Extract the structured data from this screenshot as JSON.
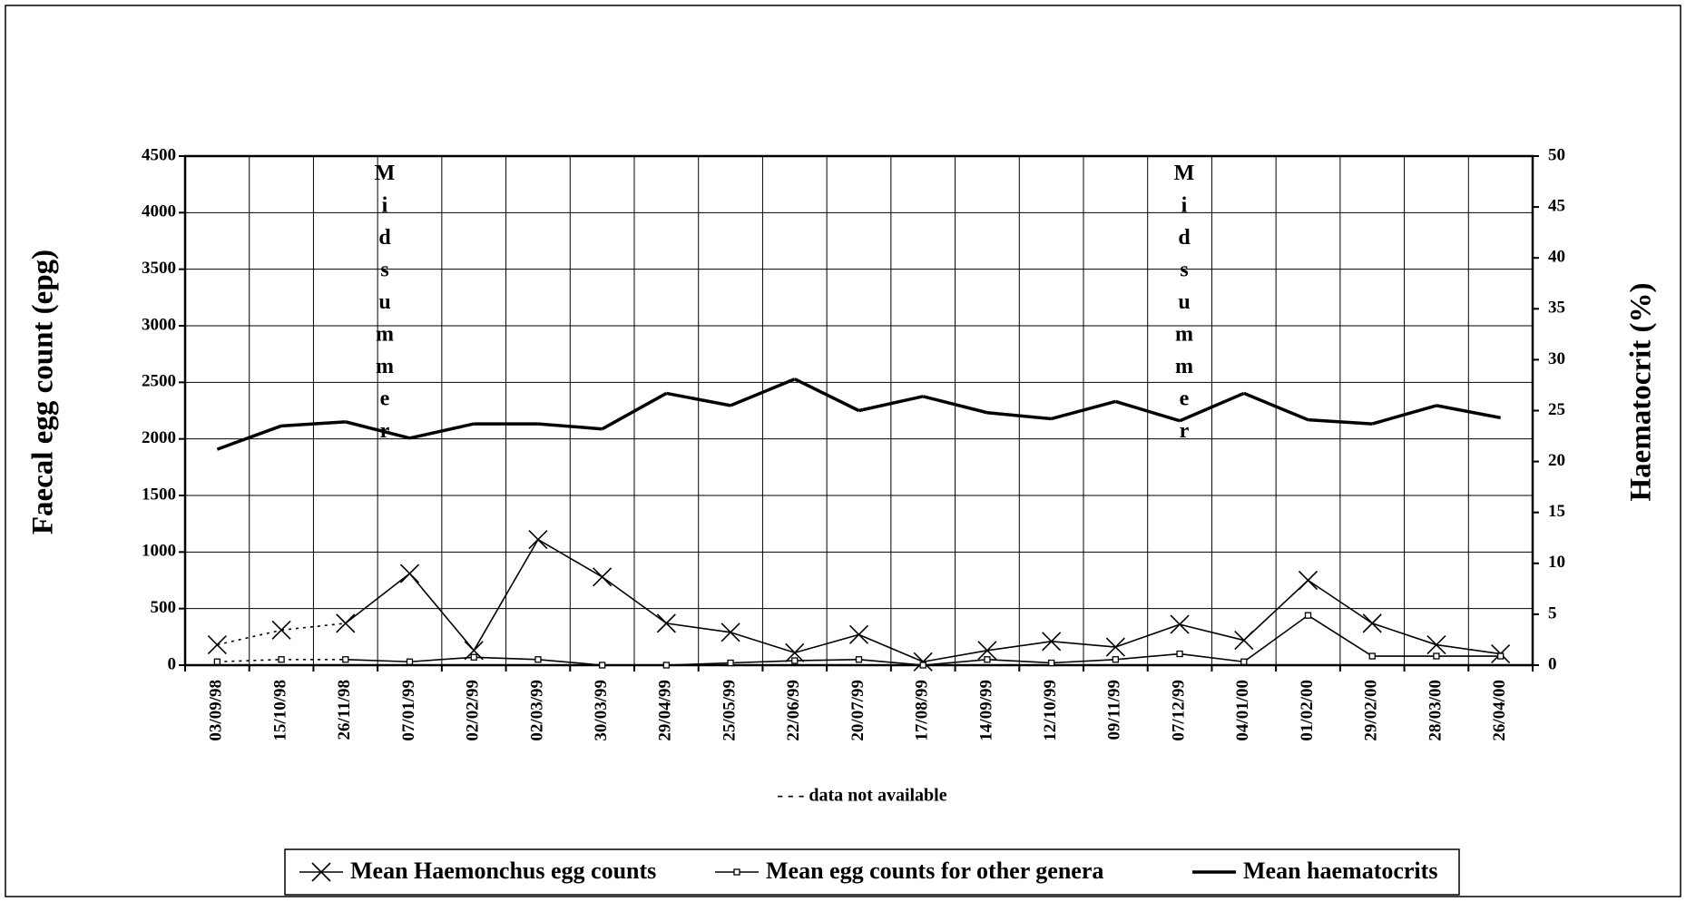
{
  "chart_data": {
    "type": "line",
    "categories": [
      "03/09/98",
      "15/10/98",
      "26/11/98",
      "07/01/99",
      "02/02/99",
      "02/03/99",
      "30/03/99",
      "29/04/99",
      "25/05/99",
      "22/06/99",
      "20/07/99",
      "17/08/99",
      "14/09/99",
      "12/10/99",
      "09/11/99",
      "07/12/99",
      "04/01/00",
      "01/02/00",
      "29/02/00",
      "28/03/00",
      "26/04/00"
    ],
    "series": [
      {
        "name": "Mean Haemonchus egg counts",
        "color": "#000000",
        "marker": "x",
        "dotted_through": "26/11/98",
        "values": [
          180,
          310,
          370,
          810,
          130,
          1110,
          780,
          370,
          290,
          110,
          270,
          30,
          130,
          210,
          160,
          360,
          220,
          750,
          370,
          180,
          100
        ]
      },
      {
        "name": "Mean egg counts for other genera",
        "color": "#000000",
        "marker": "square",
        "dotted_through": "26/11/98",
        "values": [
          30,
          50,
          50,
          30,
          70,
          50,
          0,
          0,
          20,
          40,
          50,
          0,
          50,
          20,
          50,
          100,
          30,
          440,
          80,
          80,
          80
        ]
      },
      {
        "name": "Mean haematocrits",
        "color": "#000000",
        "marker": "none",
        "axis": "y2",
        "values": [
          21.2,
          23.5,
          23.9,
          22.3,
          23.7,
          23.7,
          23.2,
          26.7,
          25.5,
          28.1,
          25.0,
          26.4,
          24.8,
          24.2,
          25.9,
          24.0,
          26.7,
          24.1,
          23.7,
          25.5,
          24.3
        ]
      }
    ],
    "ylabel": "Faecal egg count (epg)",
    "y2label": "Haematocrit (%)",
    "ylim": [
      0,
      4500
    ],
    "yticks": [
      0,
      500,
      1000,
      1500,
      2000,
      2500,
      3000,
      3500,
      4000,
      4500
    ],
    "y2lim": [
      0,
      50
    ],
    "y2ticks": [
      0,
      5,
      10,
      15,
      20,
      25,
      30,
      35,
      40,
      45,
      50
    ],
    "annotations": [
      {
        "text": "Midsummer"
      },
      {
        "text": "Midsummer"
      }
    ],
    "note": "- - - data not available",
    "grid": true
  }
}
